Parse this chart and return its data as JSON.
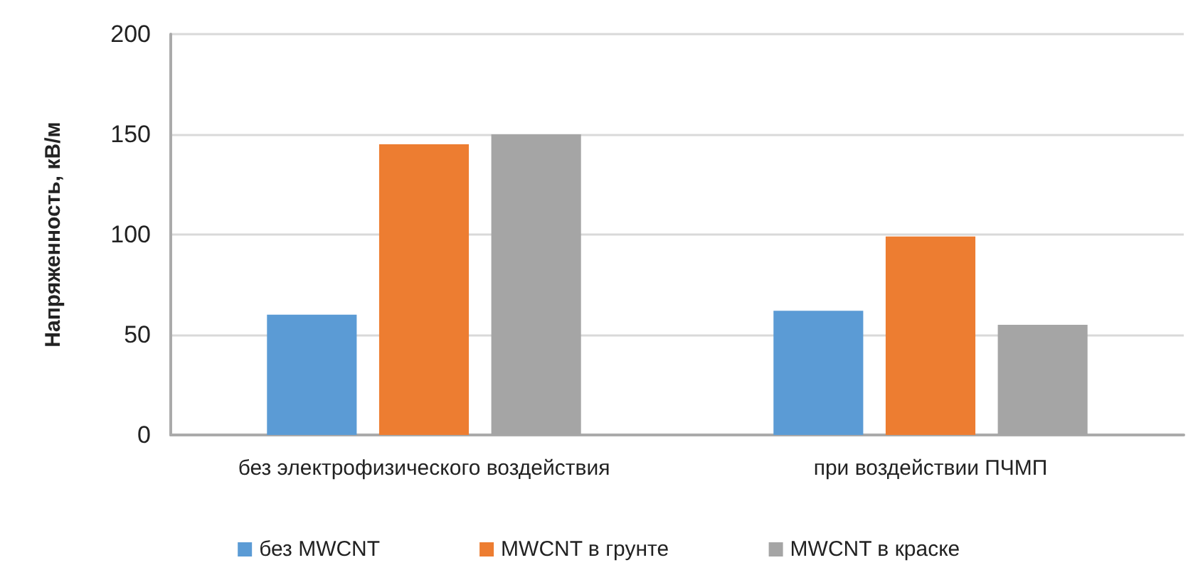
{
  "chart_data": {
    "type": "bar",
    "ylabel": "Напряженность, кВ/м",
    "categories": [
      "без электрофизического воздействия",
      "при воздействии ПЧМП"
    ],
    "series": [
      {
        "name": "без MWCNT",
        "color": "#5b9bd5",
        "values": [
          60,
          62
        ]
      },
      {
        "name": "MWCNT в грунте",
        "color": "#ed7d31",
        "values": [
          145,
          99
        ]
      },
      {
        "name": "MWCNT в краске",
        "color": "#a5a5a5",
        "values": [
          150,
          55
        ]
      }
    ],
    "ylim": [
      0,
      200
    ],
    "yticks": [
      0,
      50,
      100,
      150,
      200
    ],
    "grid": "y",
    "legend": "bottom"
  }
}
